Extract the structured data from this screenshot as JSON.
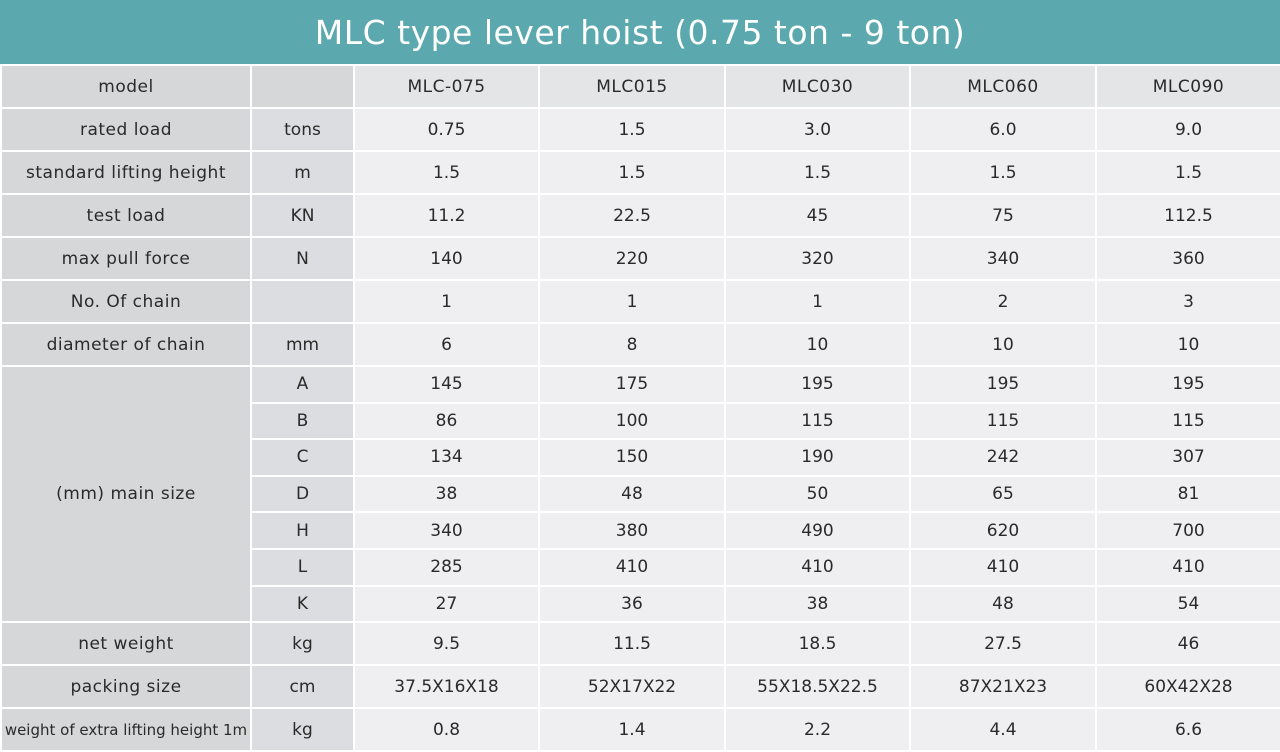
{
  "title": "MLC type lever hoist (0.75 ton - 9 ton)",
  "header": {
    "label": "model",
    "unit": "",
    "models": [
      "MLC-075",
      "MLC015",
      "MLC030",
      "MLC060",
      "MLC090"
    ]
  },
  "rows": [
    {
      "label": "rated load",
      "unit": "tons",
      "values": [
        "0.75",
        "1.5",
        "3.0",
        "6.0",
        "9.0"
      ]
    },
    {
      "label": "standard lifting height",
      "unit": "m",
      "values": [
        "1.5",
        "1.5",
        "1.5",
        "1.5",
        "1.5"
      ]
    },
    {
      "label": "test load",
      "unit": "KN",
      "values": [
        "11.2",
        "22.5",
        "45",
        "75",
        "112.5"
      ]
    },
    {
      "label": "max pull force",
      "unit": "N",
      "values": [
        "140",
        "220",
        "320",
        "340",
        "360"
      ]
    },
    {
      "label": "No. Of chain",
      "unit": "",
      "values": [
        "1",
        "1",
        "1",
        "2",
        "3"
      ]
    },
    {
      "label": "diameter of chain",
      "unit": "mm",
      "values": [
        "6",
        "8",
        "10",
        "10",
        "10"
      ]
    }
  ],
  "main_size": {
    "label": "(mm) main size",
    "rows": [
      {
        "unit": "A",
        "values": [
          "145",
          "175",
          "195",
          "195",
          "195"
        ]
      },
      {
        "unit": "B",
        "values": [
          "86",
          "100",
          "115",
          "115",
          "115"
        ]
      },
      {
        "unit": "C",
        "values": [
          "134",
          "150",
          "190",
          "242",
          "307"
        ]
      },
      {
        "unit": "D",
        "values": [
          "38",
          "48",
          "50",
          "65",
          "81"
        ]
      },
      {
        "unit": "H",
        "values": [
          "340",
          "380",
          "490",
          "620",
          "700"
        ]
      },
      {
        "unit": "L",
        "values": [
          "285",
          "410",
          "410",
          "410",
          "410"
        ]
      },
      {
        "unit": "K",
        "values": [
          "27",
          "36",
          "38",
          "48",
          "54"
        ]
      }
    ]
  },
  "rows_after": [
    {
      "label": "net weight",
      "unit": "kg",
      "values": [
        "9.5",
        "11.5",
        "18.5",
        "27.5",
        "46"
      ]
    },
    {
      "label": "packing size",
      "unit": "cm",
      "values": [
        "37.5X16X18",
        "52X17X22",
        "55X18.5X22.5",
        "87X21X23",
        "60X42X28"
      ]
    },
    {
      "label": "weight of extra lifting height 1m",
      "unit": "kg",
      "values": [
        "0.8",
        "1.4",
        "2.2",
        "4.4",
        "6.6"
      ]
    }
  ]
}
